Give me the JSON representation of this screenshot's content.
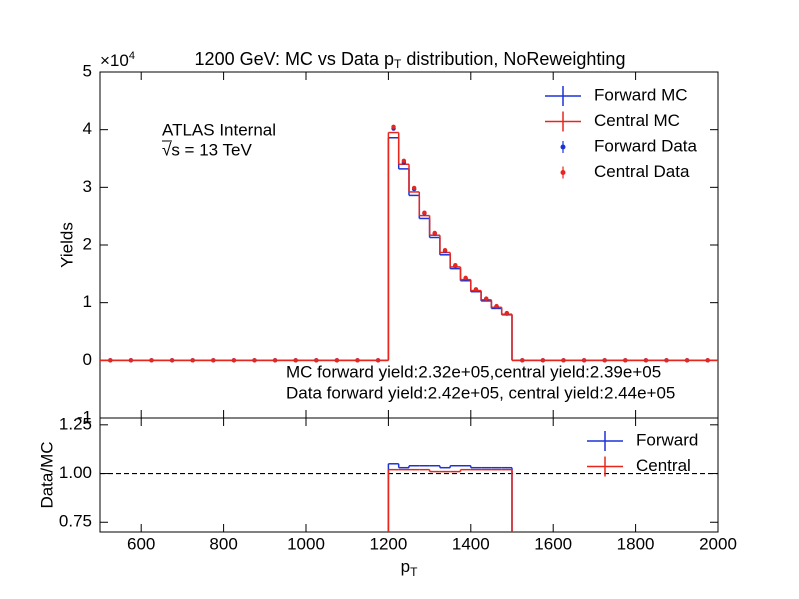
{
  "chart_data": [
    {
      "type": "histogram",
      "title": {
        "main": "1200 GeV: MC vs Data p",
        "sub": "T",
        "rest": " distribution, NoReweighting"
      },
      "y_offset_label": {
        "base": "×10",
        "exp": "4"
      },
      "ylabel": "Yields",
      "annotations": [
        "ATLAS Internal",
        "√s = 13 TeV",
        "MC forward yield:2.32e+05,central yield:2.39e+05",
        "Data forward yield:2.42e+05, central yield:2.44e+05"
      ],
      "xlim": [
        500,
        2000
      ],
      "xticks": [
        600,
        800,
        1000,
        1200,
        1400,
        1600,
        1800,
        2000
      ],
      "ylim": [
        -1,
        5
      ],
      "yticks": [
        -1,
        0,
        1,
        2,
        3,
        4,
        5
      ],
      "bins": [
        500,
        550,
        600,
        650,
        700,
        750,
        800,
        850,
        900,
        950,
        1000,
        1050,
        1100,
        1150,
        1200,
        1225,
        1250,
        1275,
        1300,
        1325,
        1350,
        1375,
        1400,
        1425,
        1450,
        1475,
        1500,
        1550,
        1600,
        1650,
        1700,
        1750,
        1800,
        1850,
        1900,
        1950,
        2000
      ],
      "legend": "upper right",
      "series": [
        {
          "name": "Forward MC",
          "color": "#1c33d6",
          "style": "step",
          "values": [
            0,
            0,
            0,
            0,
            0,
            0,
            0,
            0,
            0,
            0,
            0,
            0,
            0,
            0,
            3.86,
            3.32,
            2.86,
            2.46,
            2.13,
            1.83,
            1.59,
            1.38,
            1.19,
            1.03,
            0.9,
            0.79,
            0,
            0,
            0,
            0,
            0,
            0,
            0,
            0,
            0,
            0
          ]
        },
        {
          "name": "Central MC",
          "color": "#e8261c",
          "style": "step",
          "values": [
            0,
            0,
            0,
            0,
            0,
            0,
            0,
            0,
            0,
            0,
            0,
            0,
            0,
            0,
            3.95,
            3.4,
            2.92,
            2.51,
            2.17,
            1.87,
            1.62,
            1.4,
            1.21,
            1.05,
            0.92,
            0.8,
            0,
            0,
            0,
            0,
            0,
            0,
            0,
            0,
            0,
            0
          ]
        },
        {
          "name": "Forward Data",
          "color": "#1c33d6",
          "style": "points",
          "values": [
            0,
            0,
            0,
            0,
            0,
            0,
            0,
            0,
            0,
            0,
            0,
            0,
            0,
            0,
            4.02,
            3.43,
            2.97,
            2.55,
            2.2,
            1.9,
            1.64,
            1.42,
            1.23,
            1.06,
            0.93,
            0.81,
            0,
            0,
            0,
            0,
            0,
            0,
            0,
            0,
            0,
            0
          ]
        },
        {
          "name": "Central Data",
          "color": "#e8261c",
          "style": "points",
          "values": [
            0,
            0,
            0,
            0,
            0,
            0,
            0,
            0,
            0,
            0,
            0,
            0,
            0,
            0,
            4.05,
            3.46,
            2.99,
            2.56,
            2.21,
            1.91,
            1.65,
            1.43,
            1.23,
            1.07,
            0.94,
            0.82,
            0,
            0,
            0,
            0,
            0,
            0,
            0,
            0,
            0,
            0
          ]
        }
      ]
    },
    {
      "type": "histogram",
      "xlabel": {
        "main": "p",
        "sub": "T"
      },
      "ylabel": "Data/MC",
      "xlim": [
        500,
        2000
      ],
      "xticks": [
        600,
        800,
        1000,
        1200,
        1400,
        1600,
        1800,
        2000
      ],
      "ylim": [
        0.7,
        1.285
      ],
      "yticks": [
        0.75,
        {
          "value": 1.0,
          "label": "1.00"
        },
        1.25
      ],
      "reference_line": 1,
      "bins": [
        500,
        550,
        600,
        650,
        700,
        750,
        800,
        850,
        900,
        950,
        1000,
        1050,
        1100,
        1150,
        1200,
        1225,
        1250,
        1275,
        1300,
        1325,
        1350,
        1375,
        1400,
        1425,
        1450,
        1475,
        1500,
        1550,
        1600,
        1650,
        1700,
        1750,
        1800,
        1850,
        1900,
        1950,
        2000
      ],
      "legend": "upper right",
      "series": [
        {
          "name": "Forward",
          "color": "#1c33d6",
          "style": "step",
          "values": [
            null,
            null,
            null,
            null,
            null,
            null,
            null,
            null,
            null,
            null,
            null,
            null,
            null,
            null,
            1.05,
            1.03,
            1.04,
            1.04,
            1.04,
            1.03,
            1.04,
            1.04,
            1.03,
            1.03,
            1.03,
            1.03,
            null,
            null,
            null,
            null,
            null,
            null,
            null,
            null,
            null,
            null
          ]
        },
        {
          "name": "Central",
          "color": "#e8261c",
          "style": "step",
          "values": [
            null,
            null,
            null,
            null,
            null,
            null,
            null,
            null,
            null,
            null,
            null,
            null,
            null,
            null,
            1.02,
            1.02,
            1.02,
            1.02,
            1.01,
            1.01,
            1.01,
            1.02,
            1.02,
            1.02,
            1.02,
            1.02,
            null,
            null,
            null,
            null,
            null,
            null,
            null,
            null,
            null,
            null
          ]
        }
      ]
    }
  ]
}
